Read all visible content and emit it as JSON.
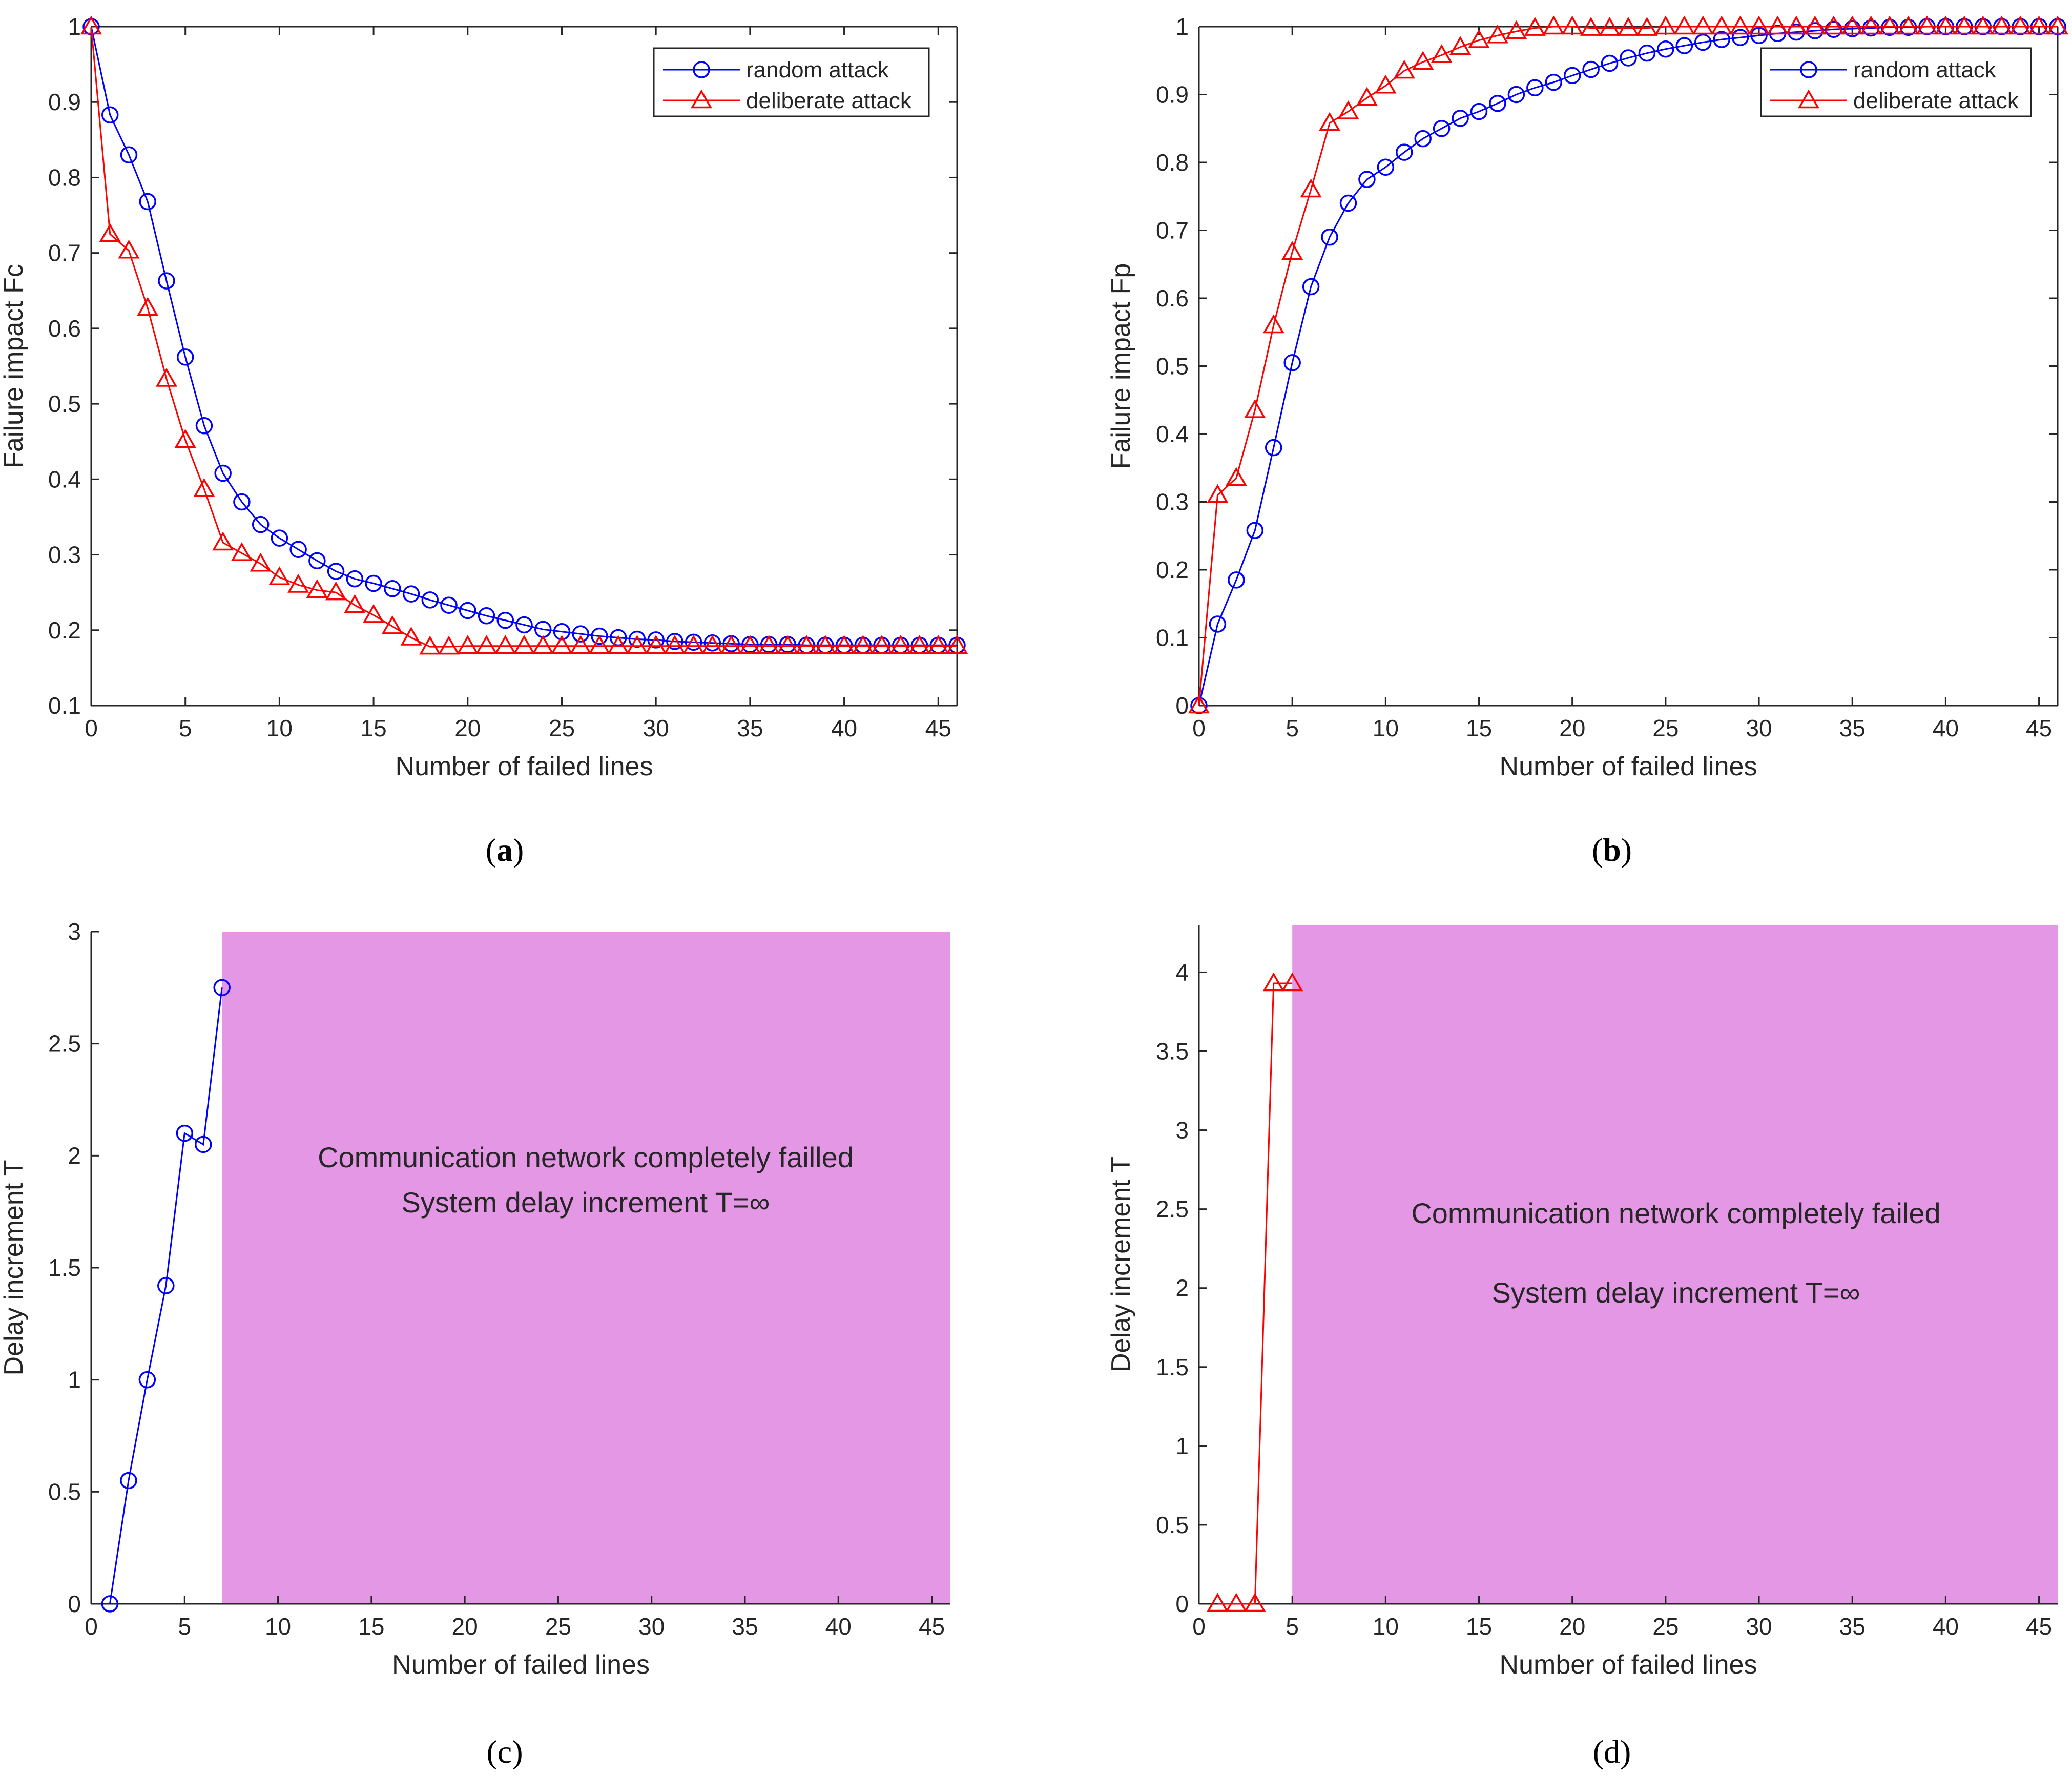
{
  "chart_data": [
    {
      "id": "a",
      "panel_label": "a",
      "type": "line",
      "xlabel": "Number of failed lines",
      "ylabel": "Failure impact Fc",
      "xlim": [
        0,
        46
      ],
      "ylim": [
        0.1,
        1
      ],
      "xticks": [
        0,
        5,
        10,
        15,
        20,
        25,
        30,
        35,
        40,
        45
      ],
      "yticks": [
        0.1,
        0.2,
        0.3,
        0.4,
        0.5,
        0.6,
        0.7,
        0.8,
        0.9,
        1
      ],
      "grid": false,
      "legend_position": "top-right",
      "series": [
        {
          "name": "random attack",
          "color": "#0000ff",
          "marker": "circle",
          "x": [
            0,
            1,
            2,
            3,
            4,
            5,
            6,
            7,
            8,
            9,
            10,
            11,
            12,
            13,
            14,
            15,
            16,
            17,
            18,
            19,
            20,
            21,
            22,
            23,
            24,
            25,
            26,
            27,
            28,
            29,
            30,
            31,
            32,
            33,
            34,
            35,
            36,
            37,
            38,
            39,
            40,
            41,
            42,
            43,
            44,
            45,
            46
          ],
          "y": [
            1,
            0.883,
            0.83,
            0.768,
            0.663,
            0.562,
            0.471,
            0.408,
            0.37,
            0.34,
            0.322,
            0.307,
            0.292,
            0.278,
            0.268,
            0.262,
            0.255,
            0.248,
            0.24,
            0.233,
            0.226,
            0.219,
            0.213,
            0.207,
            0.201,
            0.198,
            0.195,
            0.192,
            0.19,
            0.188,
            0.187,
            0.185,
            0.184,
            0.183,
            0.182,
            0.181,
            0.181,
            0.181,
            0.18,
            0.18,
            0.18,
            0.18,
            0.18,
            0.18,
            0.18,
            0.18,
            0.18
          ]
        },
        {
          "name": "deliberate attack",
          "color": "#ff0000",
          "marker": "triangle",
          "x": [
            0,
            1,
            2,
            3,
            4,
            5,
            6,
            7,
            8,
            9,
            10,
            11,
            12,
            13,
            14,
            15,
            16,
            17,
            18,
            19,
            20,
            21,
            22,
            23,
            24,
            25,
            26,
            27,
            28,
            29,
            30,
            31,
            32,
            33,
            34,
            35,
            36,
            37,
            38,
            39,
            40,
            41,
            42,
            43,
            44,
            45,
            46
          ],
          "y": [
            1,
            0.725,
            0.703,
            0.627,
            0.533,
            0.452,
            0.387,
            0.316,
            0.302,
            0.288,
            0.27,
            0.26,
            0.253,
            0.25,
            0.233,
            0.22,
            0.205,
            0.19,
            0.178,
            0.178,
            0.179,
            0.179,
            0.179,
            0.179,
            0.179,
            0.179,
            0.179,
            0.179,
            0.179,
            0.179,
            0.179,
            0.179,
            0.179,
            0.179,
            0.179,
            0.179,
            0.179,
            0.179,
            0.179,
            0.179,
            0.179,
            0.179,
            0.179,
            0.179,
            0.179,
            0.179,
            0.179
          ]
        }
      ]
    },
    {
      "id": "b",
      "panel_label": "b",
      "type": "line",
      "xlabel": "Number of failed lines",
      "ylabel": "Failure impact Fp",
      "xlim": [
        0,
        46
      ],
      "ylim": [
        0,
        1
      ],
      "xticks": [
        0,
        5,
        10,
        15,
        20,
        25,
        30,
        35,
        40,
        45
      ],
      "yticks": [
        0,
        0.1,
        0.2,
        0.3,
        0.4,
        0.5,
        0.6,
        0.7,
        0.8,
        0.9,
        1
      ],
      "grid": false,
      "legend_position": "top-right",
      "series": [
        {
          "name": "random attack",
          "color": "#0000ff",
          "marker": "circle",
          "x": [
            0,
            1,
            2,
            3,
            4,
            5,
            6,
            7,
            8,
            9,
            10,
            11,
            12,
            13,
            14,
            15,
            16,
            17,
            18,
            19,
            20,
            21,
            22,
            23,
            24,
            25,
            26,
            27,
            28,
            29,
            30,
            31,
            32,
            33,
            34,
            35,
            36,
            37,
            38,
            39,
            40,
            41,
            42,
            43,
            44,
            45,
            46
          ],
          "y": [
            0,
            0.12,
            0.185,
            0.258,
            0.38,
            0.505,
            0.617,
            0.69,
            0.74,
            0.775,
            0.793,
            0.815,
            0.835,
            0.85,
            0.865,
            0.875,
            0.887,
            0.9,
            0.91,
            0.918,
            0.928,
            0.937,
            0.946,
            0.954,
            0.961,
            0.967,
            0.972,
            0.977,
            0.981,
            0.984,
            0.987,
            0.99,
            0.992,
            0.994,
            0.996,
            0.997,
            0.998,
            0.999,
            0.999,
            1,
            1,
            1,
            1,
            1,
            1,
            1,
            1
          ]
        },
        {
          "name": "deliberate attack",
          "color": "#ff0000",
          "marker": "triangle",
          "x": [
            0,
            1,
            2,
            3,
            4,
            5,
            6,
            7,
            8,
            9,
            10,
            11,
            12,
            13,
            14,
            15,
            16,
            17,
            18,
            19,
            20,
            21,
            22,
            23,
            24,
            25,
            26,
            27,
            28,
            29,
            30,
            31,
            32,
            33,
            34,
            35,
            36,
            37,
            38,
            39,
            40,
            41,
            42,
            43,
            44,
            45,
            46
          ],
          "y": [
            0,
            0.31,
            0.335,
            0.435,
            0.56,
            0.668,
            0.76,
            0.858,
            0.875,
            0.895,
            0.913,
            0.935,
            0.948,
            0.958,
            0.97,
            0.98,
            0.987,
            0.993,
            0.998,
            1,
            1,
            0.998,
            0.998,
            0.998,
            0.998,
            1,
            1,
            1,
            1,
            1,
            1,
            1,
            1,
            1,
            1,
            1,
            1,
            1,
            1,
            1,
            1,
            1,
            1,
            1,
            1,
            1,
            1
          ]
        }
      ]
    },
    {
      "id": "c",
      "panel_label": "c",
      "type": "line",
      "xlabel": "Number of failed lines",
      "ylabel": "Delay increment T",
      "xlim": [
        0,
        46
      ],
      "ylim": [
        0,
        3
      ],
      "xticks": [
        0,
        5,
        10,
        15,
        20,
        25,
        30,
        35,
        40,
        45
      ],
      "yticks": [
        0,
        0.5,
        1,
        1.5,
        2,
        2.5,
        3
      ],
      "grid": false,
      "box": false,
      "shaded_region": {
        "x_start": 7,
        "x_end": 46,
        "color": "#e497e4"
      },
      "annotation": [
        "Communication network completely failled",
        "System delay increment T=∞"
      ],
      "series": [
        {
          "name": "random attack",
          "color": "#0000ff",
          "marker": "circle",
          "x": [
            1,
            2,
            3,
            4,
            5,
            6,
            7
          ],
          "y": [
            0,
            0.55,
            1,
            1.42,
            2.1,
            2.05,
            2.75
          ]
        }
      ]
    },
    {
      "id": "d",
      "panel_label": "d",
      "type": "line",
      "xlabel": "Number of failed lines",
      "ylabel": "Delay increment T",
      "xlim": [
        0,
        46
      ],
      "ylim": [
        0,
        4.3
      ],
      "xticks": [
        0,
        5,
        10,
        15,
        20,
        25,
        30,
        35,
        40,
        45
      ],
      "yticks": [
        0,
        0.5,
        1,
        1.5,
        2,
        2.5,
        3,
        3.5,
        4
      ],
      "grid": false,
      "box": false,
      "shaded_region": {
        "x_start": 5,
        "x_end": 46,
        "color": "#e497e4"
      },
      "annotation": [
        "Communication network completely failed",
        "System delay increment T=∞"
      ],
      "series": [
        {
          "name": "deliberate attack",
          "color": "#ff0000",
          "marker": "triangle",
          "x": [
            1,
            2,
            3,
            4,
            5
          ],
          "y": [
            0,
            0,
            0,
            3.93,
            3.93
          ]
        }
      ]
    }
  ]
}
